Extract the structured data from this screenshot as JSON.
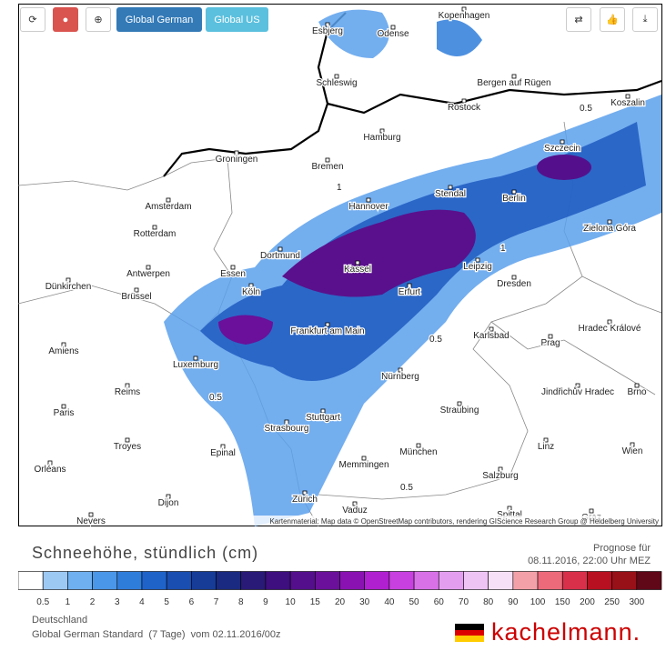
{
  "toolbar": {
    "buttons": [
      "Global German",
      "Global US"
    ]
  },
  "map": {
    "cities": [
      "Esbjerg",
      "Odense",
      "Kopenhagen",
      "Schleswig",
      "Bergen auf Rügen",
      "Rostock",
      "Koszalin",
      "Hamburg",
      "Szczecin",
      "Groningen",
      "Bremen",
      "Amsterdam",
      "Hannover",
      "Stendal",
      "Berlin",
      "Rotterdam",
      "Zielona Góra",
      "Dortmund",
      "Antwerpen",
      "Essen",
      "Kassel",
      "Leipzig",
      "Dünkirchen",
      "Brüssel",
      "Köln",
      "Erfurt",
      "Dresden",
      "Frankfurt am Main",
      "Hradec Králové",
      "Karlsbad",
      "Amiens",
      "Prag",
      "Luxemburg",
      "Reims",
      "Nürnberg",
      "Jindřichův Hradec",
      "Brno",
      "Paris",
      "Straubing",
      "Stuttgart",
      "Troyes",
      "Strasbourg",
      "Linz",
      "Wien",
      "Epinal",
      "München",
      "Memmingen",
      "Salzburg",
      "Orléans",
      "Dijon",
      "Zürich",
      "Vaduz",
      "Nevers",
      "Spittal",
      "Graz"
    ],
    "contour_labels": [
      0.5,
      1,
      1,
      0.5,
      0.5,
      0.5
    ],
    "attribution": "Kartenmaterial: Map data © OpenStreetMap contributors, rendering GIScience Research Group @ Heidelberg University"
  },
  "legend": {
    "title": "Schneehöhe, stündlich (cm)",
    "forecast_label": "Prognose für",
    "forecast_time": "08.11.2016, 22:00 Uhr MEZ",
    "colors": [
      "#ffffff",
      "#9cc8f4",
      "#6fb0f0",
      "#4a96e8",
      "#2f7ddb",
      "#1f63c8",
      "#1a4eb0",
      "#163c98",
      "#1a2a80",
      "#2a1a78",
      "#3e0f7e",
      "#54108c",
      "#6a109a",
      "#8a12b2",
      "#b020d0",
      "#c840e0",
      "#d870e8",
      "#e49ef0",
      "#eec4f4",
      "#f6e0f8",
      "#f4a0a8",
      "#ec6a7a",
      "#d8304a",
      "#b81020",
      "#981018",
      "#600818"
    ],
    "labels": [
      0.5,
      1,
      2,
      3,
      4,
      5,
      6,
      7,
      8,
      9,
      10,
      15,
      20,
      30,
      40,
      50,
      60,
      70,
      80,
      90,
      100,
      150,
      200,
      250,
      300
    ]
  },
  "footer": {
    "region": "Deutschland",
    "model": "Global German Standard  (7 Tage)  vom 02.11.2016/00z",
    "brand": "kachelmann."
  }
}
